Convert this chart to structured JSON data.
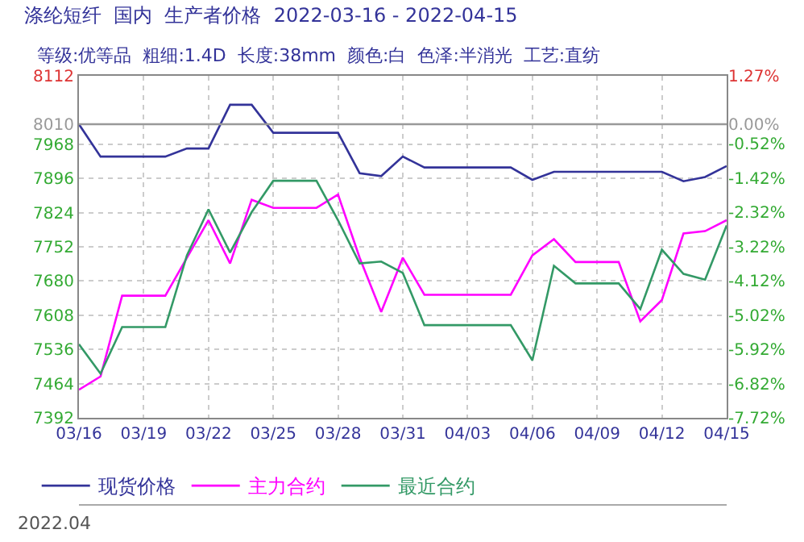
{
  "chart_data": {
    "type": "line",
    "title": "涤纶短纤  国内  生产者价格  2022-03-16 - 2022-04-15",
    "subtitle": "等级:优等品  粗细:1.4D  长度:38mm  颜色:白  色泽:半消光  工艺:直纺",
    "x": [
      "2022-03-16",
      "2022-03-17",
      "2022-03-18",
      "2022-03-19",
      "2022-03-20",
      "2022-03-21",
      "2022-03-22",
      "2022-03-23",
      "2022-03-24",
      "2022-03-25",
      "2022-03-26",
      "2022-03-27",
      "2022-03-28",
      "2022-03-29",
      "2022-03-30",
      "2022-03-31",
      "2022-04-01",
      "2022-04-02",
      "2022-04-03",
      "2022-04-04",
      "2022-04-05",
      "2022-04-06",
      "2022-04-07",
      "2022-04-08",
      "2022-04-09",
      "2022-04-10",
      "2022-04-11",
      "2022-04-12",
      "2022-04-13",
      "2022-04-14",
      "2022-04-15"
    ],
    "series": [
      {
        "name": "现货价格",
        "color": "#333399",
        "values": [
          8010,
          7942,
          7942,
          7942,
          7942,
          7959,
          7959,
          8051,
          8051,
          7992,
          7992,
          7992,
          7992,
          7907,
          7901,
          7942,
          7919,
          7919,
          7919,
          7919,
          7919,
          7893,
          7910,
          7910,
          7910,
          7910,
          7910,
          7910,
          7890,
          7899,
          7922
        ]
      },
      {
        "name": "主力合约",
        "color": "#ff00ff",
        "values": [
          7451,
          7479,
          7649,
          7649,
          7649,
          7729,
          7808,
          7717,
          7851,
          7834,
          7834,
          7834,
          7862,
          7729,
          7615,
          7729,
          7651,
          7651,
          7651,
          7651,
          7651,
          7734,
          7768,
          7720,
          7720,
          7720,
          7595,
          7640,
          7780,
          7785,
          7808
        ]
      },
      {
        "name": "最近合约",
        "color": "#339966",
        "values": [
          7547,
          7485,
          7583,
          7583,
          7583,
          7734,
          7831,
          7740,
          7825,
          7891,
          7891,
          7891,
          7808,
          7717,
          7721,
          7697,
          7587,
          7587,
          7587,
          7587,
          7587,
          7513,
          7712,
          7675,
          7675,
          7675,
          7621,
          7746,
          7695,
          7683,
          7797
        ]
      }
    ],
    "xlim": [
      "2022-03-16",
      "2022-04-15"
    ],
    "xticks": [
      {
        "value": "2022-03-16",
        "label": "03/16"
      },
      {
        "value": "2022-03-19",
        "label": "03/19"
      },
      {
        "value": "2022-03-22",
        "label": "03/22"
      },
      {
        "value": "2022-03-25",
        "label": "03/25"
      },
      {
        "value": "2022-03-28",
        "label": "03/28"
      },
      {
        "value": "2022-03-31",
        "label": "03/31"
      },
      {
        "value": "2022-04-03",
        "label": "04/03"
      },
      {
        "value": "2022-04-06",
        "label": "04/06"
      },
      {
        "value": "2022-04-09",
        "label": "04/09"
      },
      {
        "value": "2022-04-12",
        "label": "04/12"
      },
      {
        "value": "2022-04-15",
        "label": "04/15"
      }
    ],
    "ylim": [
      7392,
      8112
    ],
    "yticks": [
      8112,
      8010,
      7968,
      7896,
      7824,
      7752,
      7680,
      7608,
      7536,
      7464,
      7392
    ],
    "y2lim": [
      -7.72,
      1.27
    ],
    "y2ticks": [
      {
        "value": 1.27,
        "label": "1.27%"
      },
      {
        "value": 0,
        "label": "0.00%"
      },
      {
        "value": -0.52,
        "label": "-0.52%"
      },
      {
        "value": -1.42,
        "label": "-1.42%"
      },
      {
        "value": -2.32,
        "label": "-2.32%"
      },
      {
        "value": -3.22,
        "label": "-3.22%"
      },
      {
        "value": -4.12,
        "label": "-4.12%"
      },
      {
        "value": -5.02,
        "label": "-5.02%"
      },
      {
        "value": -5.92,
        "label": "-5.92%"
      },
      {
        "value": -6.82,
        "label": "-6.82%"
      },
      {
        "value": -7.72,
        "label": "-7.72%"
      }
    ],
    "ref_lines": [
      {
        "axis": "y",
        "value": 8010,
        "color": "#999999",
        "line_style": "solid"
      }
    ],
    "annotations": [
      "2022.04"
    ],
    "grid": true,
    "legend": "bottom",
    "marker": "none",
    "line_style": "solid"
  }
}
